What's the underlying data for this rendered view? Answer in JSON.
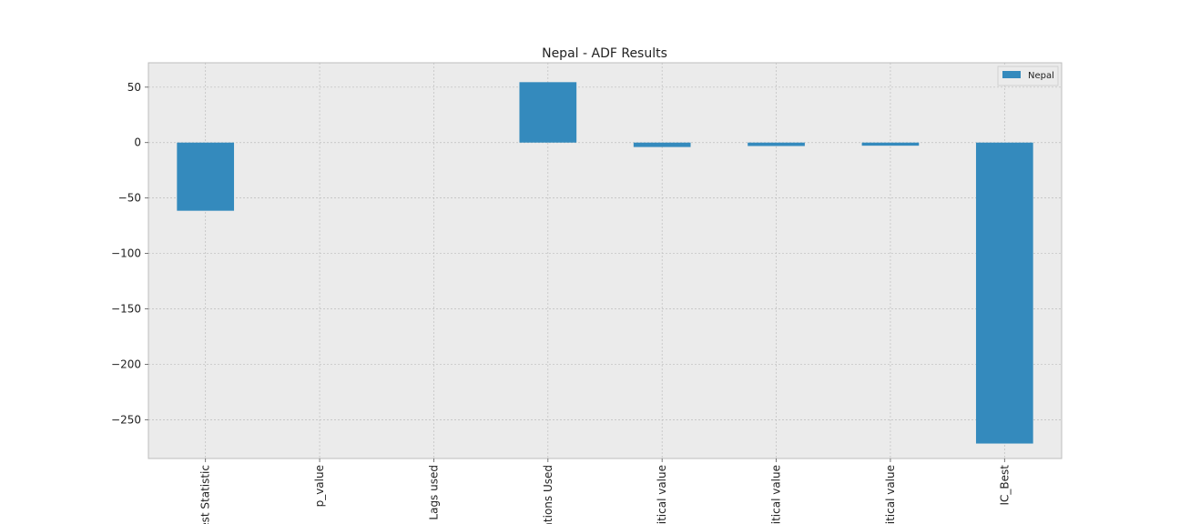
{
  "chart_data": {
    "type": "bar",
    "title": "Nepal - ADF Results",
    "categories": [
      "est Statistic",
      "p_value",
      "Lags used",
      "ations Used",
      "ritical value",
      "ritical value",
      "ritical value",
      "IC_Best"
    ],
    "series": [
      {
        "name": "Nepal",
        "values": [
          -61.5,
          0.0,
          0,
          54.5,
          -4.0,
          -3.1,
          -2.8,
          -271.5
        ]
      }
    ],
    "ylim": [
      -285,
      72
    ],
    "yticks": [
      50,
      0,
      -50,
      -100,
      -150,
      -200,
      -250
    ],
    "ytick_labels": [
      "50",
      "0",
      "−50",
      "−100",
      "−150",
      "−200",
      "−250"
    ],
    "grid": true,
    "legend_position": "top-right",
    "colors": {
      "bar": "#348ABD",
      "background": "#EBEBEB",
      "grid": "#BDBDBD",
      "frame": "#BCBCBC"
    }
  }
}
